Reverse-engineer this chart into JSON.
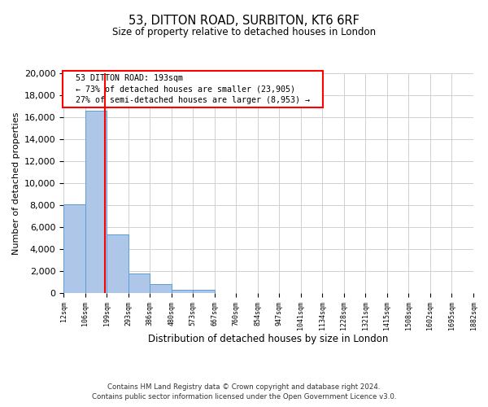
{
  "title": "53, DITTON ROAD, SURBITON, KT6 6RF",
  "subtitle": "Size of property relative to detached houses in London",
  "xlabel": "Distribution of detached houses by size in London",
  "ylabel": "Number of detached properties",
  "bar_values": [
    8100,
    16600,
    5300,
    1800,
    800,
    300,
    300,
    0,
    0,
    0,
    0,
    0,
    0,
    0,
    0,
    0,
    0,
    0,
    0
  ],
  "bin_labels": [
    "12sqm",
    "106sqm",
    "199sqm",
    "293sqm",
    "386sqm",
    "480sqm",
    "573sqm",
    "667sqm",
    "760sqm",
    "854sqm",
    "947sqm",
    "1041sqm",
    "1134sqm",
    "1228sqm",
    "1321sqm",
    "1415sqm",
    "1508sqm",
    "1602sqm",
    "1695sqm",
    "1882sqm"
  ],
  "bar_color": "#aec6e8",
  "bar_edge_color": "#5a9fd4",
  "vline_color": "#ff0000",
  "ylim": [
    0,
    20000
  ],
  "yticks": [
    0,
    2000,
    4000,
    6000,
    8000,
    10000,
    12000,
    14000,
    16000,
    18000,
    20000
  ],
  "annotation_title": "53 DITTON ROAD: 193sqm",
  "annotation_line1": "← 73% of detached houses are smaller (23,905)",
  "annotation_line2": "27% of semi-detached houses are larger (8,953) →",
  "annotation_box_color": "#ffffff",
  "annotation_box_edge": "#ff0000",
  "footer1": "Contains HM Land Registry data © Crown copyright and database right 2024.",
  "footer2": "Contains public sector information licensed under the Open Government Licence v3.0.",
  "grid_color": "#d0d0d0",
  "background_color": "#ffffff"
}
